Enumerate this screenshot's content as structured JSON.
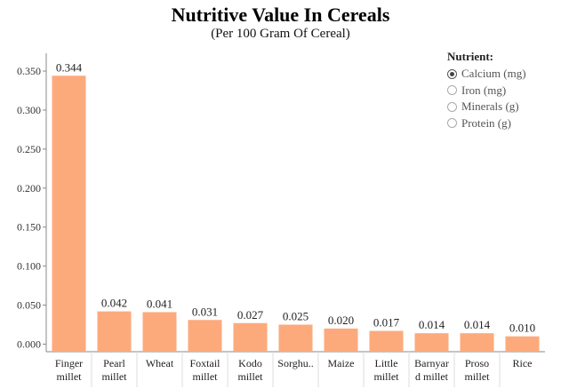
{
  "title": "Nutritive Value In Cereals",
  "subtitle": "(Per 100 Gram Of Cereal)",
  "legend": {
    "title": "Nutrient:",
    "options": [
      {
        "label": "Calcium (mg)",
        "selected": true
      },
      {
        "label": "Iron (mg)",
        "selected": false
      },
      {
        "label": "Minerals (g)",
        "selected": false
      },
      {
        "label": "Protein (g)",
        "selected": false
      }
    ]
  },
  "colors": {
    "bar": "#fcaa7c",
    "axis": "#888888",
    "grid": "#e6e6e6"
  },
  "chart_data": {
    "type": "bar",
    "title": "Nutritive Value In Cereals",
    "subtitle": "(Per 100 Gram Of Cereal)",
    "categories": [
      [
        "Finger",
        "millet"
      ],
      [
        "Pearl",
        "millet"
      ],
      [
        "Wheat"
      ],
      [
        "Foxtail",
        "millet"
      ],
      [
        "Kodo",
        "millet"
      ],
      [
        "Sorghu.."
      ],
      [
        "Maize"
      ],
      [
        "Little",
        "millet"
      ],
      [
        "Barnyar",
        "d millet"
      ],
      [
        "Proso",
        "millet"
      ],
      [
        "Rice"
      ]
    ],
    "values": [
      0.344,
      0.042,
      0.041,
      0.031,
      0.027,
      0.025,
      0.02,
      0.017,
      0.014,
      0.014,
      0.01
    ],
    "value_labels": [
      "0.344",
      "0.042",
      "0.041",
      "0.031",
      "0.027",
      "0.025",
      "0.020",
      "0.017",
      "0.014",
      "0.014",
      "0.010"
    ],
    "yticks": [
      "0.000",
      "0.050",
      "0.100",
      "0.150",
      "0.200",
      "0.250",
      "0.300",
      "0.350"
    ],
    "ytick_values": [
      0,
      0.05,
      0.1,
      0.15,
      0.2,
      0.25,
      0.3,
      0.35
    ],
    "ylim": [
      0,
      0.36
    ],
    "grid": false,
    "legend_position": "top-right"
  }
}
